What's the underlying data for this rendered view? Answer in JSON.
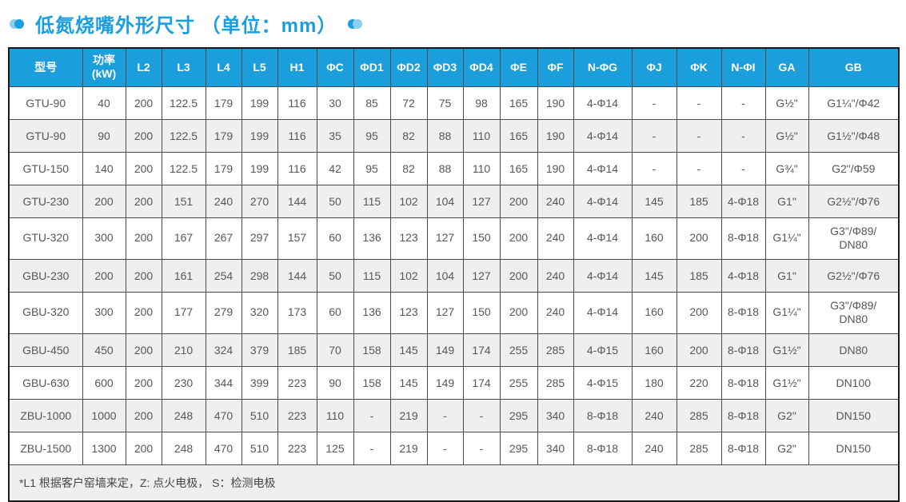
{
  "title": "低氮烧嘴外形尺寸 （单位：mm）",
  "colors": {
    "accent_blue": "#1a9fdc",
    "title_blue": "#1b9ee0",
    "deco_light_blue": "#8ecdf0",
    "row_alt_gray": "#efefef",
    "border_dark": "#4a4a4b",
    "cell_text": "#56575b"
  },
  "table": {
    "columns": [
      "型号",
      "功率 (kW)",
      "L2",
      "L3",
      "L4",
      "L5",
      "H1",
      "ΦC",
      "ΦD1",
      "ΦD2",
      "ΦD3",
      "ΦD4",
      "ΦE",
      "ΦF",
      "N-ΦG",
      "ΦJ",
      "ΦK",
      "N-ΦI",
      "GA",
      "GB"
    ],
    "rows": [
      [
        "GTU-90",
        "40",
        "200",
        "122.5",
        "179",
        "199",
        "116",
        "30",
        "85",
        "72",
        "75",
        "98",
        "165",
        "190",
        "4-Φ14",
        "-",
        "-",
        "-",
        "G½\"",
        "G1¼\"/Φ42"
      ],
      [
        "GTU-90",
        "90",
        "200",
        "122.5",
        "179",
        "199",
        "116",
        "35",
        "95",
        "82",
        "88",
        "110",
        "165",
        "190",
        "4-Φ14",
        "-",
        "-",
        "-",
        "G½\"",
        "G1½\"/Φ48"
      ],
      [
        "GTU-150",
        "140",
        "200",
        "122.5",
        "179",
        "199",
        "116",
        "42",
        "95",
        "82",
        "88",
        "110",
        "165",
        "190",
        "4-Φ14",
        "-",
        "-",
        "-",
        "G¾\"",
        "G2\"/Φ59"
      ],
      [
        "GTU-230",
        "200",
        "200",
        "151",
        "240",
        "270",
        "144",
        "50",
        "115",
        "102",
        "104",
        "127",
        "200",
        "240",
        "4-Φ14",
        "145",
        "185",
        "4-Φ18",
        "G1\"",
        "G2½\"/Φ76"
      ],
      [
        "GTU-320",
        "300",
        "200",
        "167",
        "267",
        "297",
        "157",
        "60",
        "136",
        "123",
        "127",
        "150",
        "200",
        "240",
        "4-Φ14",
        "160",
        "200",
        "8-Φ18",
        "G1¼\"",
        "G3\"/Φ89/\nDN80"
      ],
      [
        "GBU-230",
        "200",
        "200",
        "161",
        "254",
        "298",
        "144",
        "50",
        "115",
        "102",
        "104",
        "127",
        "200",
        "240",
        "4-Φ14",
        "145",
        "185",
        "4-Φ18",
        "G1\"",
        "G2½\"/Φ76"
      ],
      [
        "GBU-320",
        "300",
        "200",
        "177",
        "279",
        "320",
        "173",
        "60",
        "136",
        "123",
        "127",
        "150",
        "200",
        "240",
        "4-Φ14",
        "160",
        "200",
        "8-Φ18",
        "G1¼\"",
        "G3\"/Φ89/\nDN80"
      ],
      [
        "GBU-450",
        "450",
        "200",
        "210",
        "324",
        "379",
        "185",
        "70",
        "158",
        "145",
        "149",
        "174",
        "255",
        "285",
        "4-Φ15",
        "160",
        "200",
        "8-Φ18",
        "G1½\"",
        "DN80"
      ],
      [
        "GBU-630",
        "600",
        "200",
        "230",
        "344",
        "399",
        "223",
        "90",
        "158",
        "145",
        "149",
        "174",
        "255",
        "285",
        "4-Φ15",
        "180",
        "220",
        "8-Φ18",
        "G1½\"",
        "DN100"
      ],
      [
        "ZBU-1000",
        "1000",
        "200",
        "248",
        "470",
        "510",
        "223",
        "110",
        "-",
        "219",
        "-",
        "-",
        "295",
        "340",
        "8-Φ18",
        "240",
        "285",
        "8-Φ18",
        "G2\"",
        "DN150"
      ],
      [
        "ZBU-1500",
        "1300",
        "200",
        "248",
        "470",
        "510",
        "223",
        "125",
        "-",
        "219",
        "-",
        "-",
        "295",
        "340",
        "8-Φ18",
        "240",
        "285",
        "8-Φ18",
        "G2\"",
        "DN150"
      ]
    ],
    "footnote": "*L1 根据客户窑墙来定，Z: 点火电极， S：检测电极"
  }
}
